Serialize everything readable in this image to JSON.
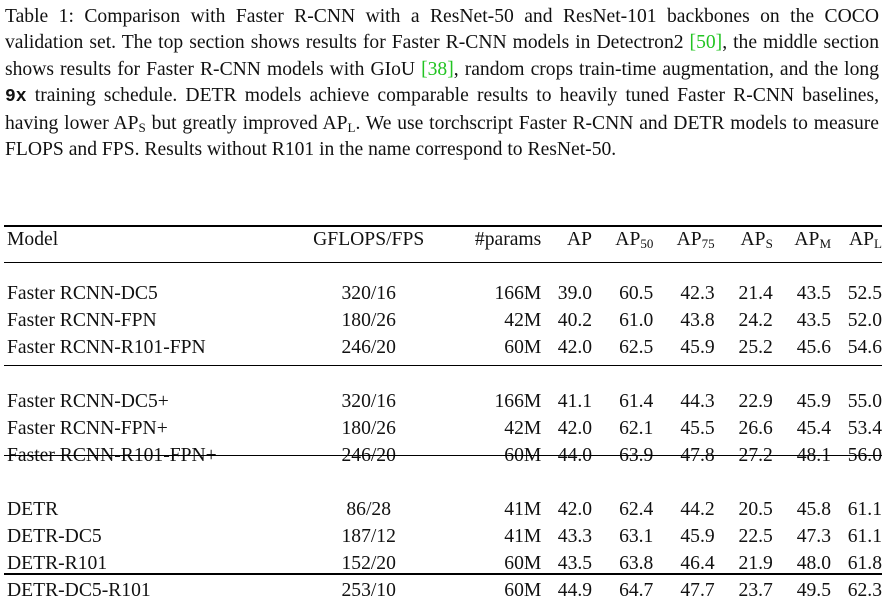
{
  "caption": {
    "part1": "Table 1: Comparison with Faster R-CNN with a ResNet-50 and ResNet-101 backbones on the COCO validation set. The top section shows results for Faster R-CNN models in Detectron2 ",
    "cite1": "[50]",
    "part2": ", the middle section shows results for Faster R-CNN models with GIoU ",
    "cite2": "[38]",
    "part3": ", random crops train-time augmentation, and the long ",
    "schedule": "9x",
    "part4": " training schedule. DETR models achieve comparable results to heavily tuned Faster R-CNN baselines, having lower AP",
    "sub_s": "S",
    "part5": " but greatly improved AP",
    "sub_l": "L",
    "part6": ". We use torchscript Faster R-CNN and DETR models to measure FLOPS and FPS. Results without R101 in the name correspond to ResNet-50."
  },
  "table": {
    "headers": {
      "model": "Model",
      "gflops": "GFLOPS/FPS",
      "params": "#params",
      "ap": "AP",
      "ap50_base": "AP",
      "ap50_sub": "50",
      "ap75_base": "AP",
      "ap75_sub": "75",
      "aps_base": "AP",
      "aps_sub": "S",
      "apm_base": "AP",
      "apm_sub": "M",
      "apl_base": "AP",
      "apl_sub": "L"
    },
    "sections": [
      [
        {
          "model": "Faster RCNN-DC5",
          "gflops": "320/16",
          "params": "166M",
          "ap": "39.0",
          "ap50": "60.5",
          "ap75": "42.3",
          "aps": "21.4",
          "apm": "43.5",
          "apl": "52.5"
        },
        {
          "model": "Faster RCNN-FPN",
          "gflops": "180/26",
          "params": "42M",
          "ap": "40.2",
          "ap50": "61.0",
          "ap75": "43.8",
          "aps": "24.2",
          "apm": "43.5",
          "apl": "52.0"
        },
        {
          "model": "Faster RCNN-R101-FPN",
          "gflops": "246/20",
          "params": "60M",
          "ap": "42.0",
          "ap50": "62.5",
          "ap75": "45.9",
          "aps": "25.2",
          "apm": "45.6",
          "apl": "54.6"
        }
      ],
      [
        {
          "model": "Faster RCNN-DC5+",
          "gflops": "320/16",
          "params": "166M",
          "ap": "41.1",
          "ap50": "61.4",
          "ap75": "44.3",
          "aps": "22.9",
          "apm": "45.9",
          "apl": "55.0"
        },
        {
          "model": "Faster RCNN-FPN+",
          "gflops": "180/26",
          "params": "42M",
          "ap": "42.0",
          "ap50": "62.1",
          "ap75": "45.5",
          "aps": "26.6",
          "apm": "45.4",
          "apl": "53.4"
        },
        {
          "model": "Faster RCNN-R101-FPN+",
          "gflops": "246/20",
          "params": "60M",
          "ap": "44.0",
          "ap50": "63.9",
          "ap75": "47.8",
          "aps": "27.2",
          "apm": "48.1",
          "apl": "56.0"
        }
      ],
      [
        {
          "model": "DETR",
          "gflops": "86/28",
          "params": "41M",
          "ap": "42.0",
          "ap50": "62.4",
          "ap75": "44.2",
          "aps": "20.5",
          "apm": "45.8",
          "apl": "61.1"
        },
        {
          "model": "DETR-DC5",
          "gflops": "187/12",
          "params": "41M",
          "ap": "43.3",
          "ap50": "63.1",
          "ap75": "45.9",
          "aps": "22.5",
          "apm": "47.3",
          "apl": "61.1"
        },
        {
          "model": "DETR-R101",
          "gflops": "152/20",
          "params": "60M",
          "ap": "43.5",
          "ap50": "63.8",
          "ap75": "46.4",
          "aps": "21.9",
          "apm": "48.0",
          "apl": "61.8"
        },
        {
          "model": "DETR-DC5-R101",
          "gflops": "253/10",
          "params": "60M",
          "ap": "44.9",
          "ap50": "64.7",
          "ap75": "47.7",
          "aps": "23.7",
          "apm": "49.5",
          "apl": "62.3"
        }
      ]
    ],
    "bold_cells": [
      {
        "section": 1,
        "row": 2,
        "col": "ap75"
      },
      {
        "section": 1,
        "row": 2,
        "col": "aps"
      },
      {
        "section": 2,
        "row": 3,
        "col": "ap"
      },
      {
        "section": 2,
        "row": 3,
        "col": "ap50"
      },
      {
        "section": 2,
        "row": 3,
        "col": "apm"
      },
      {
        "section": 2,
        "row": 3,
        "col": "apl"
      }
    ]
  }
}
